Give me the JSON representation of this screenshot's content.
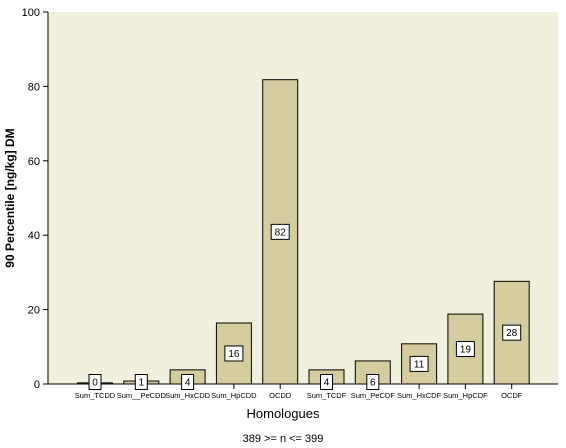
{
  "chart_data": {
    "type": "bar",
    "categories": [
      "Sum_TCDD",
      "Sum__PeCDD",
      "Sum_HxCDD",
      "Sum_HpCDD",
      "OCDD",
      "Sum_TCDF",
      "Sum_PeCDF",
      "Sum_HxCDF",
      "Sum_HpCDF",
      "OCDF"
    ],
    "values": [
      0.3,
      0.8,
      3.8,
      16.4,
      81.8,
      3.8,
      6.2,
      10.8,
      18.8,
      27.6
    ],
    "data_labels": [
      "0",
      "1",
      "4",
      "16",
      "82",
      "4",
      "6",
      "11",
      "19",
      "28"
    ],
    "ylim": [
      0,
      100
    ],
    "yticks": [
      0,
      20,
      40,
      60,
      80,
      100
    ],
    "ylabel": "90 Percentile [ng/kg] DM",
    "xlabel": "Homologues",
    "footnote": "389 >= n <= 399",
    "grid": false,
    "colors": {
      "plot_background": "#f0f0dc",
      "bar_fill": "#d4cc9e",
      "bar_stroke": "#000000",
      "axis": "#000000"
    }
  }
}
